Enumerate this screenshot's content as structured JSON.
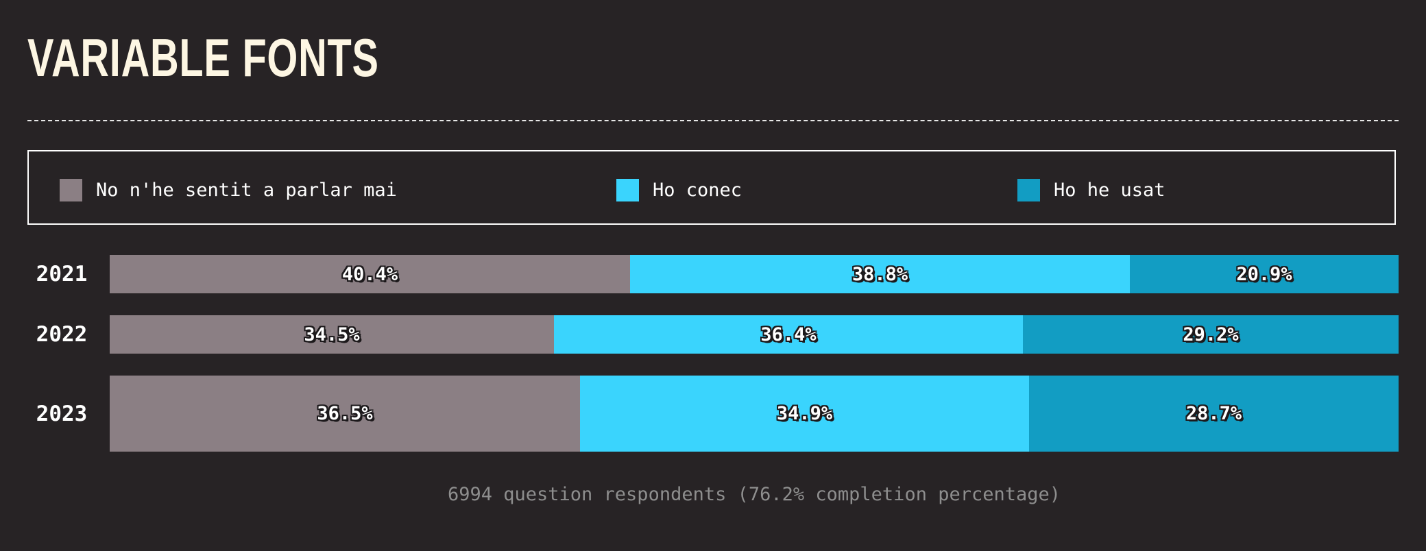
{
  "title": "VARIABLE FONTS",
  "legend": [
    {
      "label": "No n'he sentit a parlar mai",
      "color": "#8b7f84"
    },
    {
      "label": "Ho conec",
      "color": "#3ad4fd"
    },
    {
      "label": "Ho he usat",
      "color": "#129dc3"
    }
  ],
  "chart_data": {
    "type": "bar",
    "orientation": "horizontal",
    "stacked": true,
    "normalized": true,
    "categories": [
      "2021",
      "2022",
      "2023"
    ],
    "series": [
      {
        "name": "No n'he sentit a parlar mai",
        "values": [
          40.4,
          34.5,
          36.5
        ],
        "labels": [
          "40.4%",
          "34.5%",
          "36.5%"
        ],
        "color": "#8b7f84"
      },
      {
        "name": "Ho conec",
        "values": [
          38.8,
          36.4,
          34.9
        ],
        "labels": [
          "38.8%",
          "36.4%",
          "34.9%"
        ],
        "color": "#3ad4fd"
      },
      {
        "name": "Ho he usat",
        "values": [
          20.9,
          29.2,
          28.7
        ],
        "labels": [
          "20.9%",
          "29.2%",
          "28.7%"
        ],
        "color": "#129dc3"
      }
    ],
    "xlim": [
      0,
      100
    ],
    "grid": false,
    "legend_position": "top"
  },
  "footer": "6994 question respondents (76.2% completion percentage)"
}
